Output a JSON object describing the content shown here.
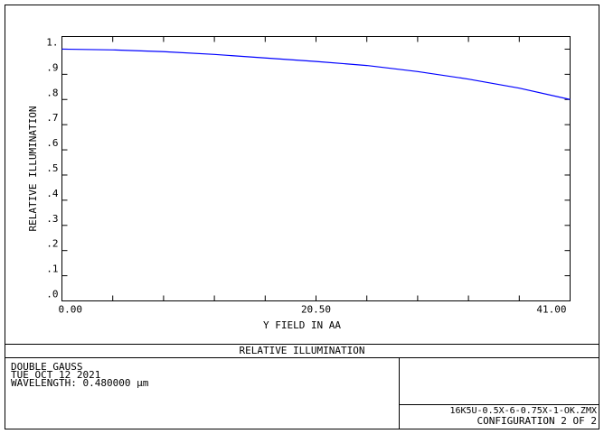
{
  "chart_data": {
    "type": "line",
    "title": "RELATIVE ILLUMINATION",
    "x_label": "Y FIELD IN  AA",
    "y_label": "RELATIVE ILLUMINATION",
    "x": [
      0,
      4.1,
      8.2,
      12.3,
      16.4,
      20.5,
      24.6,
      28.7,
      32.8,
      36.9,
      41
    ],
    "series": [
      {
        "color": "#0000ff",
        "values": [
          1.0,
          0.997,
          0.99,
          0.979,
          0.965,
          0.951,
          0.935,
          0.911,
          0.881,
          0.845,
          0.8
        ]
      }
    ],
    "xlim": [
      0,
      41
    ],
    "xticks": [
      {
        "value": 0,
        "label": "0.00"
      },
      {
        "value": 20.5,
        "label": "20.50"
      },
      {
        "value": 41,
        "label": "41.00"
      }
    ],
    "xminorticks": [
      4.1,
      8.2,
      12.3,
      16.4,
      24.6,
      28.7,
      32.8,
      36.9
    ],
    "ylim": [
      0,
      1.05
    ],
    "yticks": [
      {
        "value": 0,
        "label": ".0"
      },
      {
        "value": 0.1,
        "label": ".1"
      },
      {
        "value": 0.2,
        "label": ".2"
      },
      {
        "value": 0.3,
        "label": ".3"
      },
      {
        "value": 0.4,
        "label": ".4"
      },
      {
        "value": 0.5,
        "label": ".5"
      },
      {
        "value": 0.6,
        "label": ".6"
      },
      {
        "value": 0.7,
        "label": ".7"
      },
      {
        "value": 0.8,
        "label": ".8"
      },
      {
        "value": 0.9,
        "label": ".9"
      },
      {
        "value": 1,
        "label": "1."
      }
    ],
    "info": {
      "lines": [
        "DOUBLE GAUSS",
        "TUE OCT 12 2021",
        "WAVELENGTH: 0.480000 µm"
      ],
      "file": "16K5U-0.5X-6-0.75X-1-OK.ZMX",
      "configuration": "CONFIGURATION 2 OF 2"
    }
  }
}
